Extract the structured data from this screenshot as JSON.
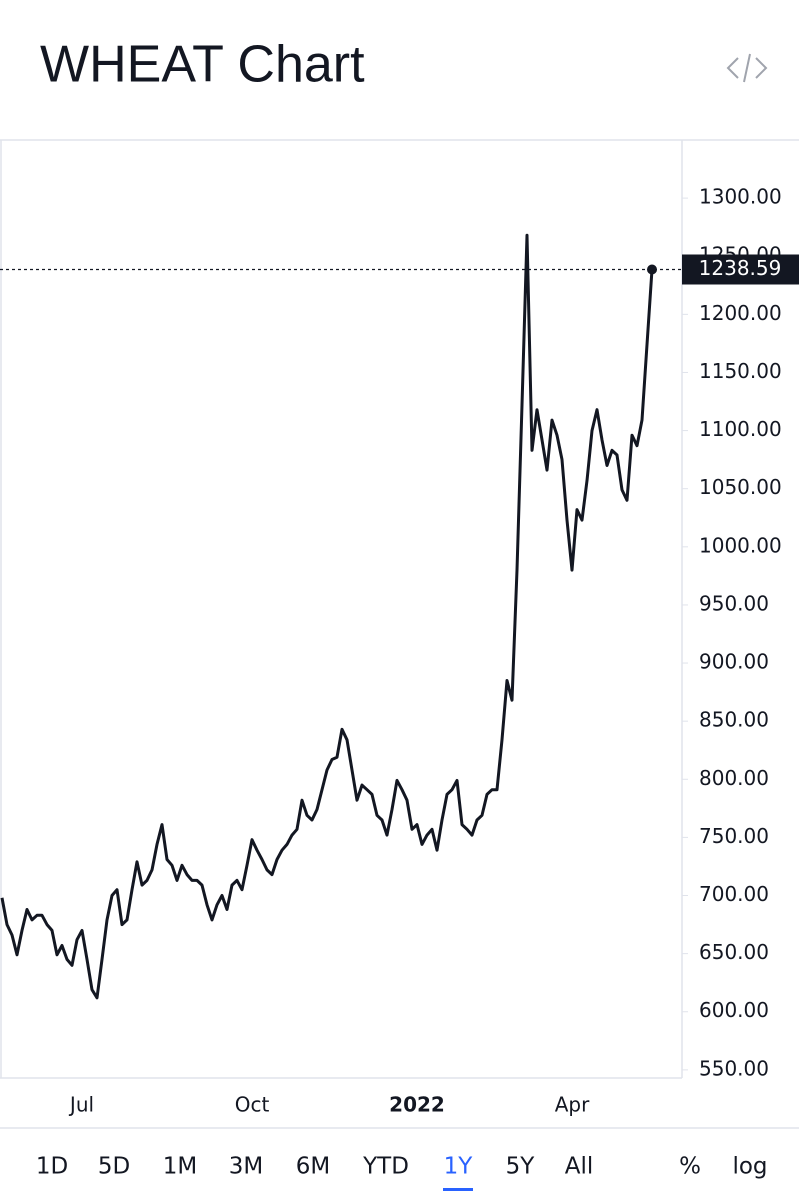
{
  "chart_data": {
    "type": "line",
    "title": "WHEAT Chart",
    "categories": [
      null,
      null,
      null,
      null,
      null,
      null,
      null,
      null,
      null,
      null,
      null,
      null,
      null,
      null,
      null,
      null,
      "Jul",
      null,
      null,
      null,
      null,
      null,
      null,
      null,
      null,
      null,
      null,
      null,
      null,
      null,
      null,
      null,
      null,
      null,
      null,
      null,
      null,
      null,
      null,
      null,
      null,
      null,
      null,
      null,
      null,
      null,
      null,
      null,
      null,
      null,
      "Oct",
      null,
      null,
      null,
      null,
      null,
      null,
      null,
      null,
      null,
      null,
      null,
      null,
      null,
      null,
      null,
      null,
      null,
      null,
      null,
      null,
      null,
      null,
      null,
      null,
      null,
      null,
      null,
      null,
      null,
      null,
      null,
      null,
      "2022",
      null,
      null,
      null,
      null,
      null,
      null,
      null,
      null,
      null,
      null,
      null,
      null,
      null,
      null,
      null,
      null,
      null,
      null,
      null,
      null,
      null,
      null,
      null,
      null,
      null,
      null,
      null,
      null,
      null,
      null,
      "Apr",
      null,
      null,
      null,
      null,
      null,
      null,
      null,
      null,
      null,
      null,
      null,
      null,
      null,
      null,
      null,
      null
    ],
    "values": [
      698,
      675,
      666,
      649,
      670,
      688,
      679,
      683,
      683,
      675,
      670,
      649,
      657,
      645,
      640,
      662,
      670,
      645,
      619,
      612,
      645,
      679,
      700,
      705,
      675,
      679,
      705,
      729,
      709,
      713,
      722,
      744,
      761,
      731,
      726,
      713,
      726,
      718,
      713,
      713,
      709,
      692,
      679,
      692,
      700,
      688,
      709,
      713,
      705,
      726,
      748,
      739,
      731,
      722,
      718,
      731,
      739,
      744,
      752,
      757,
      782,
      769,
      765,
      774,
      791,
      808,
      817,
      819,
      843,
      834,
      808,
      782,
      795,
      791,
      787,
      769,
      765,
      752,
      774,
      799,
      791,
      782,
      757,
      761,
      744,
      752,
      757,
      739,
      765,
      787,
      791,
      799,
      761,
      757,
      752,
      765,
      769,
      787,
      791,
      791,
      834,
      885,
      868,
      980,
      1122,
      1268,
      1083,
      1118,
      1092,
      1066,
      1109,
      1096,
      1075,
      1023,
      980,
      1032,
      1023,
      1057,
      1100,
      1118,
      1092,
      1070,
      1083,
      1079,
      1049,
      1040,
      1096,
      1087,
      1109,
      1174,
      1238.59
    ],
    "color": "#131722",
    "last_value_line": true,
    "ylim": [
      543,
      1350
    ],
    "yticks": [
      {
        "value": 550,
        "label": "550.00"
      },
      {
        "value": 600,
        "label": "600.00"
      },
      {
        "value": 650,
        "label": "650.00"
      },
      {
        "value": 700,
        "label": "700.00"
      },
      {
        "value": 750,
        "label": "750.00"
      },
      {
        "value": 800,
        "label": "800.00"
      },
      {
        "value": 850,
        "label": "850.00"
      },
      {
        "value": 900,
        "label": "900.00"
      },
      {
        "value": 950,
        "label": "950.00"
      },
      {
        "value": 1000,
        "label": "1000.00"
      },
      {
        "value": 1050,
        "label": "1050.00"
      },
      {
        "value": 1100,
        "label": "1100.00"
      },
      {
        "value": 1150,
        "label": "1150.00"
      },
      {
        "value": 1200,
        "label": "1200.00"
      },
      {
        "value": 1250,
        "label": "1250.00"
      },
      {
        "value": 1300,
        "label": "1300.00"
      }
    ],
    "grid": false
  },
  "range_buttons": [
    "1D",
    "5D",
    "1M",
    "3M",
    "6M",
    "YTD",
    "1Y",
    "5Y",
    "All"
  ],
  "selected_range": "1Y",
  "scale_buttons": [
    "%",
    "log"
  ]
}
